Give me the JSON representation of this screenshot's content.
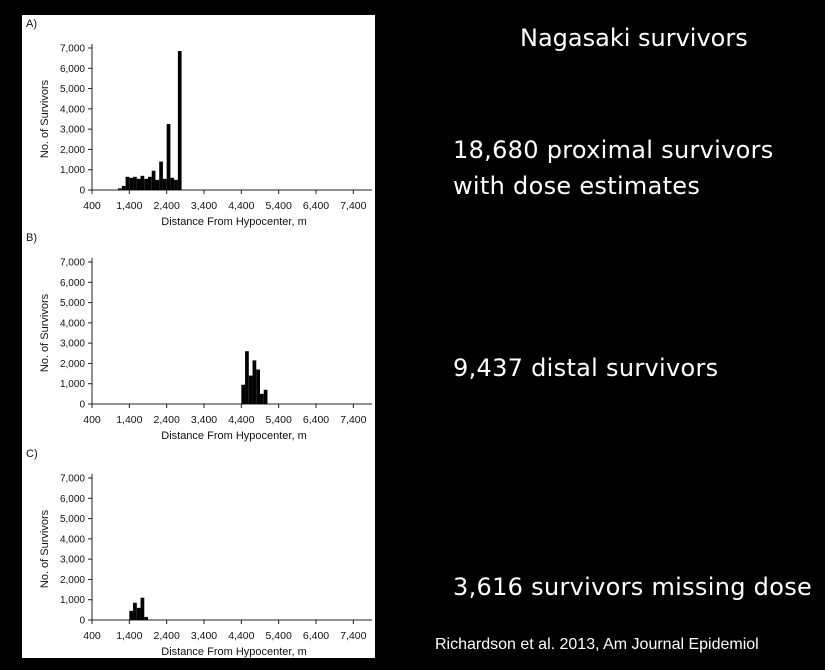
{
  "slide": {
    "title": "Nagasaki survivors",
    "stats": [
      {
        "line1": "18,680 proximal survivors",
        "line2": "with dose estimates"
      },
      {
        "line1": "9,437 distal survivors",
        "line2": ""
      },
      {
        "line1": "3,616 survivors missing dose",
        "line2": ""
      }
    ],
    "citation": "Richardson et al. 2013, Am Journal Epidemiol"
  },
  "chart_data": [
    {
      "type": "bar",
      "panel_label": "A)",
      "xlabel": "Distance From Hypocenter, m",
      "ylabel": "No. of Survivors",
      "xlim": [
        400,
        7900
      ],
      "ylim": [
        0,
        7000
      ],
      "xticks": [
        400,
        1400,
        2400,
        3400,
        4400,
        5400,
        6400,
        7400
      ],
      "xtick_labels": [
        "400",
        "1,400",
        "2,400",
        "3,400",
        "4,400",
        "5,400",
        "6,400",
        "7,400"
      ],
      "yticks": [
        0,
        1000,
        2000,
        3000,
        4000,
        5000,
        6000,
        7000
      ],
      "ytick_labels": [
        "0",
        "1,000",
        "2,000",
        "3,000",
        "4,000",
        "5,000",
        "6,000",
        "7,000"
      ],
      "bin_width": 100,
      "x": [
        1100,
        1200,
        1300,
        1400,
        1500,
        1600,
        1700,
        1800,
        1900,
        2000,
        2100,
        2200,
        2300,
        2400,
        2500,
        2600,
        2700,
        2800
      ],
      "values": [
        80,
        200,
        650,
        600,
        650,
        550,
        700,
        550,
        650,
        950,
        500,
        1400,
        550,
        3250,
        600,
        500,
        6850,
        0
      ]
    },
    {
      "type": "bar",
      "panel_label": "B)",
      "xlabel": "Distance From Hypocenter, m",
      "ylabel": "No. of Survivors",
      "xlim": [
        400,
        7900
      ],
      "ylim": [
        0,
        7000
      ],
      "xticks": [
        400,
        1400,
        2400,
        3400,
        4400,
        5400,
        6400,
        7400
      ],
      "xtick_labels": [
        "400",
        "1,400",
        "2,400",
        "3,400",
        "4,400",
        "5,400",
        "6,400",
        "7,400"
      ],
      "yticks": [
        0,
        1000,
        2000,
        3000,
        4000,
        5000,
        6000,
        7000
      ],
      "ytick_labels": [
        "0",
        "1,000",
        "2,000",
        "3,000",
        "4,000",
        "5,000",
        "6,000",
        "7,000"
      ],
      "bin_width": 100,
      "x": [
        4400,
        4500,
        4600,
        4700,
        4800,
        4900,
        5000
      ],
      "values": [
        950,
        2600,
        1400,
        2150,
        1700,
        500,
        700
      ]
    },
    {
      "type": "bar",
      "panel_label": "C)",
      "xlabel": "Distance From Hypocenter, m",
      "ylabel": "No. of Survivors",
      "xlim": [
        400,
        7900
      ],
      "ylim": [
        0,
        7000
      ],
      "xticks": [
        400,
        1400,
        2400,
        3400,
        4400,
        5400,
        6400,
        7400
      ],
      "xtick_labels": [
        "400",
        "1,400",
        "2,400",
        "3,400",
        "4,400",
        "5,400",
        "6,400",
        "7,400"
      ],
      "yticks": [
        0,
        1000,
        2000,
        3000,
        4000,
        5000,
        6000,
        7000
      ],
      "ytick_labels": [
        "0",
        "1,000",
        "2,000",
        "3,000",
        "4,000",
        "5,000",
        "6,000",
        "7,000"
      ],
      "bin_width": 100,
      "x": [
        1400,
        1500,
        1600,
        1700,
        1800
      ],
      "values": [
        450,
        850,
        600,
        1100,
        150
      ]
    }
  ]
}
